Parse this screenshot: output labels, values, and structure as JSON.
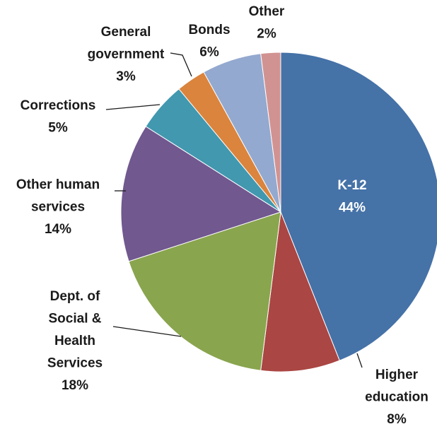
{
  "chart_data": {
    "type": "pie",
    "slices": [
      {
        "label": [
          "K-12"
        ],
        "pct_text": "44%",
        "value": 44,
        "color": "#4572A7"
      },
      {
        "label": [
          "Higher",
          "education"
        ],
        "pct_text": "8%",
        "value": 8,
        "color": "#AA4643"
      },
      {
        "label": [
          "Dept. of",
          "Social &",
          "Health",
          "Services"
        ],
        "pct_text": "18%",
        "value": 18,
        "color": "#89A54E"
      },
      {
        "label": [
          "Other human",
          "services"
        ],
        "pct_text": "14%",
        "value": 14,
        "color": "#71588F"
      },
      {
        "label": [
          "Corrections"
        ],
        "pct_text": "5%",
        "value": 5,
        "color": "#4198AF"
      },
      {
        "label": [
          "General",
          "government"
        ],
        "pct_text": "3%",
        "value": 3,
        "color": "#DB843D"
      },
      {
        "label": [
          "Bonds"
        ],
        "pct_text": "6%",
        "value": 6,
        "color": "#93A9CF"
      },
      {
        "label": [
          "Other"
        ],
        "pct_text": "2%",
        "value": 2,
        "color": "#D19392"
      }
    ],
    "start_angle_deg": 0,
    "direction": "clockwise"
  }
}
